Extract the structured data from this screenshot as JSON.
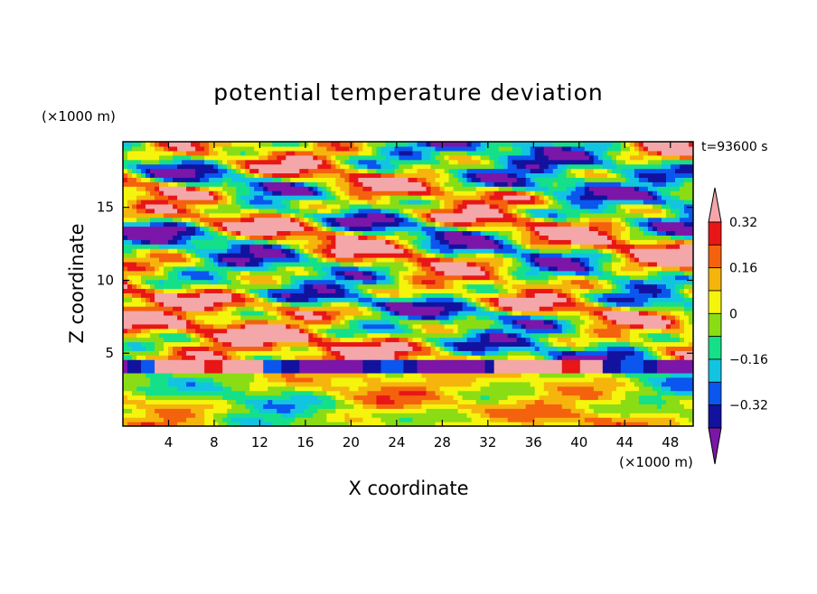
{
  "chart_data": {
    "type": "heatmap",
    "title": "potential temperature deviation",
    "xlabel": "X coordinate",
    "ylabel": "Z coordinate",
    "x_unit_label": "(×1000 m)",
    "y_unit_label": "(×1000 m)",
    "time_label": "t=93600 s",
    "xlim": [
      0,
      50
    ],
    "ylim": [
      0,
      19.5
    ],
    "x_ticks": [
      4,
      8,
      12,
      16,
      20,
      24,
      28,
      32,
      36,
      40,
      44,
      48
    ],
    "x_tick_labels": [
      "4",
      "8",
      "12",
      "16",
      "20",
      "24",
      "28",
      "32",
      "36",
      "40",
      "44",
      "48"
    ],
    "y_ticks": [
      5,
      10,
      15
    ],
    "y_tick_labels": [
      "5",
      "10",
      "15"
    ],
    "colorbar": {
      "levels": [
        -0.4,
        -0.32,
        -0.24,
        -0.16,
        -0.08,
        0,
        0.08,
        0.16,
        0.24,
        0.32,
        0.4
      ],
      "tick_values": [
        0.32,
        0.16,
        0,
        -0.16,
        -0.32
      ],
      "tick_labels": [
        "0.32",
        "0.16",
        "0",
        "−0.16",
        "−0.32"
      ],
      "colors": [
        "#7b16a8",
        "#12129e",
        "#0a56ee",
        "#12c4e2",
        "#15e08a",
        "#8add15",
        "#f4f40c",
        "#f5b50c",
        "#f4620e",
        "#e81616",
        "#f4a7a9"
      ],
      "extend": "both"
    },
    "bands": [
      {
        "zmin": 0,
        "zmax": 3.6,
        "description": "low-level layer with weak positive and negative deviations",
        "dominant_values": [
          0.08,
          -0.08,
          0.16
        ]
      },
      {
        "zmin": 3.6,
        "zmax": 4.6,
        "description": "inversion band with strong negative deviations",
        "dominant_values": [
          -0.4,
          0.4
        ]
      },
      {
        "zmin": 4.6,
        "zmax": 19.5,
        "description": "upper layer with mixed strong positive and negative cells",
        "dominant_values": [
          -0.4,
          0.4,
          0.24,
          -0.24
        ]
      }
    ]
  }
}
